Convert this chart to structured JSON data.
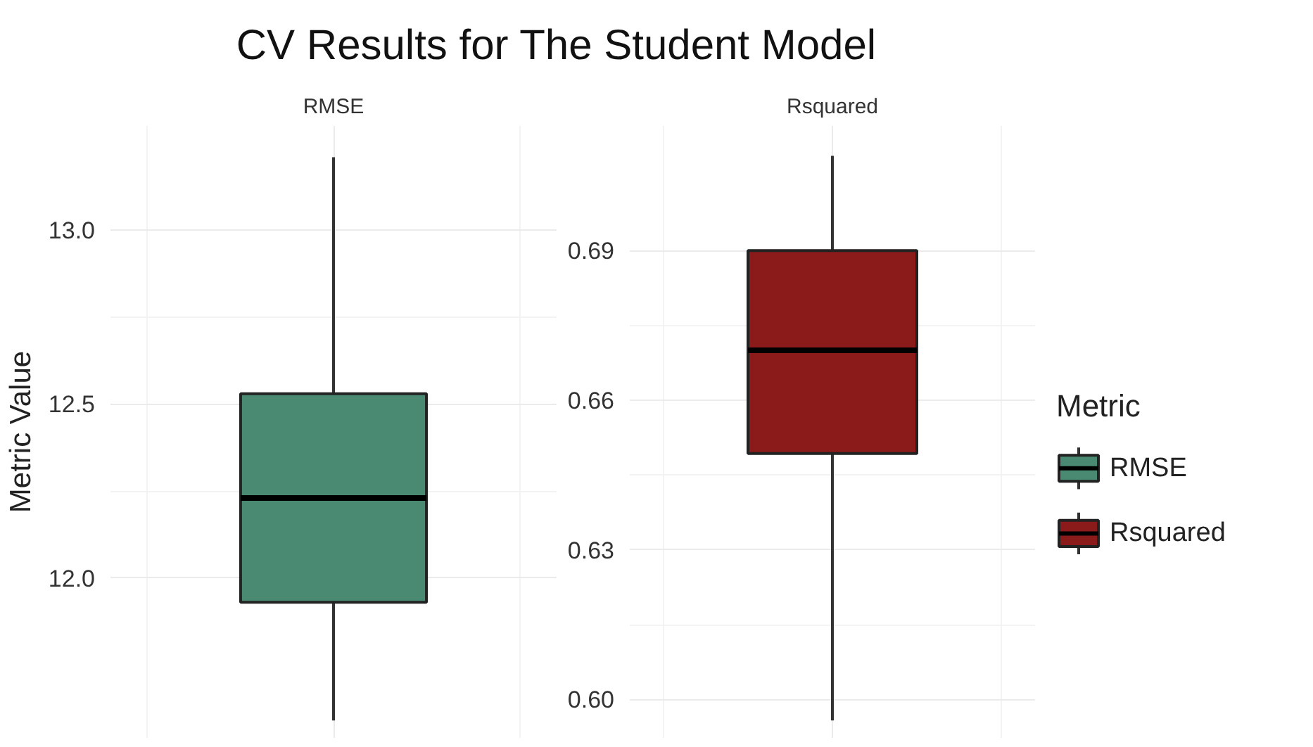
{
  "chart_data": [
    {
      "type": "box",
      "title": "CV Results for The Student Model",
      "subtitle": "RMSE",
      "ylabel": "Metric Value",
      "categories": [
        null
      ],
      "ylim": [
        11.54,
        13.3
      ],
      "yticks": [
        {
          "value": 12.0,
          "label": "12.0"
        },
        {
          "value": 12.5,
          "label": "12.5"
        },
        {
          "value": 13.0,
          "label": "13.0"
        }
      ],
      "grid": true,
      "tick_labels": "y",
      "legend": "right",
      "series": [
        {
          "name": "RMSE",
          "color": "#4a8a72",
          "boxes": [
            {
              "low": 11.59,
              "q1": 11.93,
              "median": 12.23,
              "q3": 12.53,
              "high": 13.21
            }
          ]
        }
      ]
    },
    {
      "type": "box",
      "subtitle": "Rsquared",
      "categories": [
        null
      ],
      "ylim": [
        0.5923,
        0.715
      ],
      "yticks": [
        {
          "value": 0.6,
          "label": "0.60"
        },
        0.63,
        0.66,
        0.69
      ],
      "grid": true,
      "tick_labels": "y",
      "legend": "right",
      "legend_title": "Metric",
      "series": [
        {
          "name": "Rsquared",
          "color": "#8b1a1a",
          "boxes": [
            {
              "low": 0.5958,
              "q1": 0.6493,
              "median": 0.67,
              "q3": 0.69,
              "high": 0.709
            }
          ]
        }
      ]
    }
  ]
}
